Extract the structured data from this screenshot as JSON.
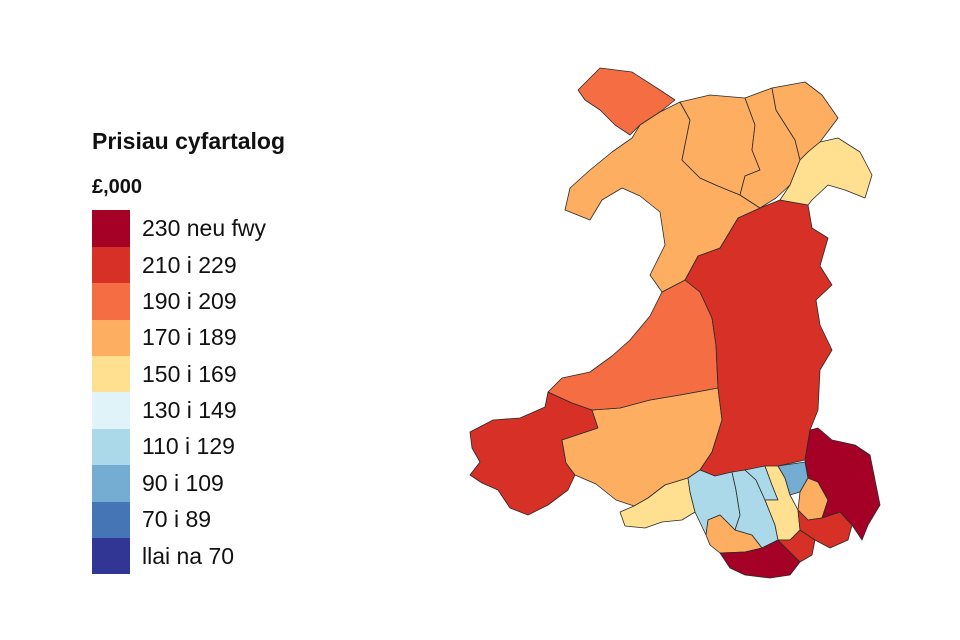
{
  "legend": {
    "title": "Prisiau cyfartalog",
    "unit": "£,000",
    "items": [
      {
        "label": "230 neu fwy",
        "color": "#a50026"
      },
      {
        "label": "210 i 229",
        "color": "#d73027"
      },
      {
        "label": "190 i 209",
        "color": "#f46d43"
      },
      {
        "label": "170 i 189",
        "color": "#fdae61"
      },
      {
        "label": "150 i 169",
        "color": "#fee090"
      },
      {
        "label": "130 i 149",
        "color": "#e0f3f8"
      },
      {
        "label": "110 i 129",
        "color": "#abd9e9"
      },
      {
        "label": "90 i 109",
        "color": "#74add1"
      },
      {
        "label": "70 i 89",
        "color": "#4575b4"
      },
      {
        "label": "llai na 70",
        "color": "#313695"
      }
    ]
  },
  "map": {
    "regions": [
      {
        "id": "anglesey",
        "band": "190 i 209"
      },
      {
        "id": "gwynedd",
        "band": "170 i 189"
      },
      {
        "id": "conwy",
        "band": "170 i 189"
      },
      {
        "id": "denbighshire",
        "band": "170 i 189"
      },
      {
        "id": "flintshire",
        "band": "170 i 189"
      },
      {
        "id": "wrexham",
        "band": "150 i 169"
      },
      {
        "id": "powys",
        "band": "210 i 229"
      },
      {
        "id": "ceredigion",
        "band": "190 i 209"
      },
      {
        "id": "pembrokeshire",
        "band": "210 i 229"
      },
      {
        "id": "carmarthenshire",
        "band": "170 i 189"
      },
      {
        "id": "swansea",
        "band": "150 i 169"
      },
      {
        "id": "neath-port-talbot",
        "band": "110 i 129"
      },
      {
        "id": "bridgend",
        "band": "170 i 189"
      },
      {
        "id": "vale-of-glamorgan",
        "band": "230 neu fwy"
      },
      {
        "id": "rhondda-cynon-taf",
        "band": "110 i 129"
      },
      {
        "id": "merthyr-tydfil",
        "band": "110 i 129"
      },
      {
        "id": "caerphilly",
        "band": "150 i 169"
      },
      {
        "id": "blaenau-gwent",
        "band": "90 i 109"
      },
      {
        "id": "torfaen",
        "band": "170 i 189"
      },
      {
        "id": "cardiff",
        "band": "210 i 229"
      },
      {
        "id": "newport",
        "band": "210 i 229"
      },
      {
        "id": "monmouthshire",
        "band": "230 neu fwy"
      }
    ]
  }
}
